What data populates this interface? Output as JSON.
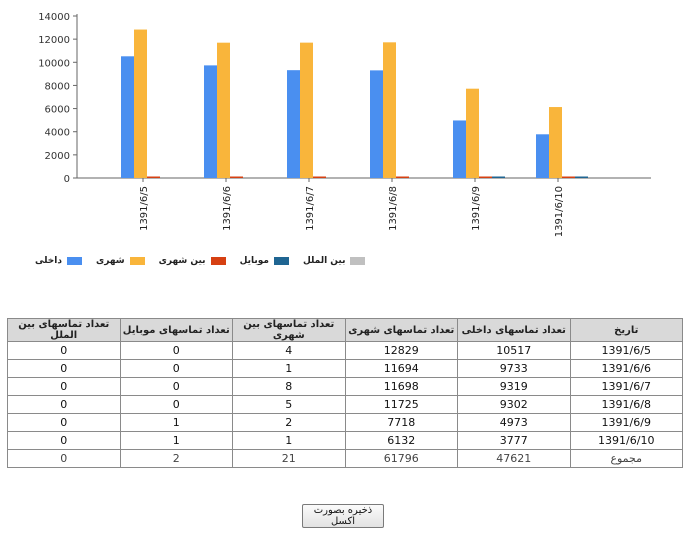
{
  "chart_data": {
    "type": "bar",
    "categories": [
      "1391/6/5",
      "1391/6/6",
      "1391/6/7",
      "1391/6/8",
      "1391/6/9",
      "1391/6/10"
    ],
    "series": [
      {
        "name": "داخلی",
        "color": "#4a8ff0",
        "values": [
          10517,
          9733,
          9319,
          9302,
          4973,
          3777
        ]
      },
      {
        "name": "شهری",
        "color": "#f9b53b",
        "values": [
          12829,
          11694,
          11698,
          11725,
          7718,
          6132
        ]
      },
      {
        "name": "بین شهری",
        "color": "#d64012",
        "values": [
          4,
          1,
          8,
          5,
          2,
          1
        ]
      },
      {
        "name": "موبایل",
        "color": "#1f6592",
        "values": [
          0,
          0,
          0,
          0,
          1,
          1
        ]
      },
      {
        "name": "بین الملل",
        "color": "#c0c0c0",
        "values": [
          0,
          0,
          0,
          0,
          0,
          0
        ]
      }
    ],
    "yticks": [
      0,
      2000,
      4000,
      6000,
      8000,
      10000,
      12000,
      14000
    ],
    "ylim": [
      0,
      14000
    ],
    "grid": false,
    "legend": "bottom-left"
  },
  "table": {
    "headers": [
      "تاریخ",
      "تعداد تماسهای داخلی",
      "تعداد تماسهای شهری",
      "تعداد تماسهای بین شهری",
      "تعداد تماسهای موبایل",
      "تعداد تماسهای بین الملل"
    ],
    "rows": [
      [
        "1391/6/5",
        "10517",
        "12829",
        "4",
        "0",
        "0"
      ],
      [
        "1391/6/6",
        "9733",
        "11694",
        "1",
        "0",
        "0"
      ],
      [
        "1391/6/7",
        "9319",
        "11698",
        "8",
        "0",
        "0"
      ],
      [
        "1391/6/8",
        "9302",
        "11725",
        "5",
        "0",
        "0"
      ],
      [
        "1391/6/9",
        "4973",
        "7718",
        "2",
        "1",
        "0"
      ],
      [
        "1391/6/10",
        "3777",
        "6132",
        "1",
        "1",
        "0"
      ]
    ],
    "total": [
      "مجموع",
      "47621",
      "61796",
      "21",
      "2",
      "0"
    ]
  },
  "save_button_label": "ذخیره بصورت اکسل"
}
